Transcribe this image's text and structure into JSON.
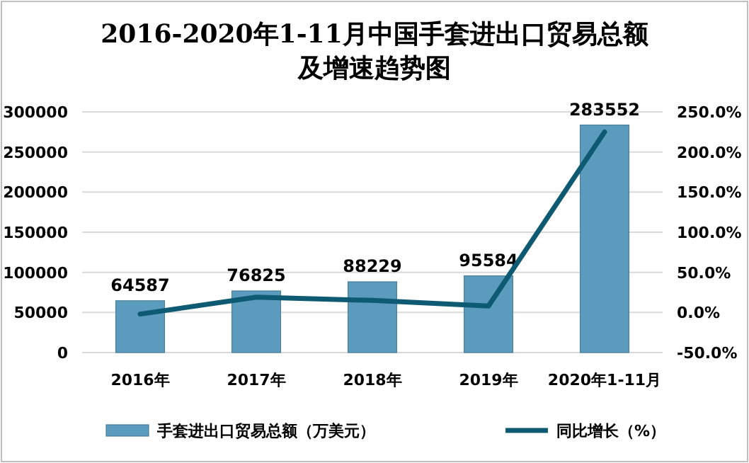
{
  "chart_data": {
    "type": "bar",
    "title": "2016-2020年1-11月中国手套进出口贸易总额及增速趋势图",
    "categories": [
      "2016年",
      "2017年",
      "2018年",
      "2019年",
      "2020年1-11月"
    ],
    "series": [
      {
        "name": "手套进出口贸易总额（万美元）",
        "color": "#5b9bbd",
        "values": [
          64587,
          76825,
          88229,
          95584,
          283552
        ],
        "value_labels": [
          "64587",
          "76825",
          "88229",
          "95584",
          "283552"
        ]
      },
      {
        "name": "同比增长（%）",
        "type": "line",
        "axis": "y2",
        "color": "#0e5a73",
        "values": [
          -2,
          19,
          15,
          8,
          225
        ]
      }
    ],
    "ylim": [
      0,
      300000
    ],
    "yticks": [
      0,
      50000,
      100000,
      150000,
      200000,
      250000,
      300000
    ],
    "y2lim": [
      -50,
      250
    ],
    "y2ticks": [
      {
        "value": -50,
        "label": "-50.0%"
      },
      {
        "value": 0,
        "label": "0.0%"
      },
      {
        "value": 50,
        "label": "50.0%"
      },
      {
        "value": 100,
        "label": "100.0%"
      },
      {
        "value": 150,
        "label": "150.0%"
      },
      {
        "value": 200,
        "label": "200.0%"
      },
      {
        "value": 250,
        "label": "250.0%"
      }
    ],
    "grid": "y",
    "legend": "bottom",
    "marker": "none"
  }
}
